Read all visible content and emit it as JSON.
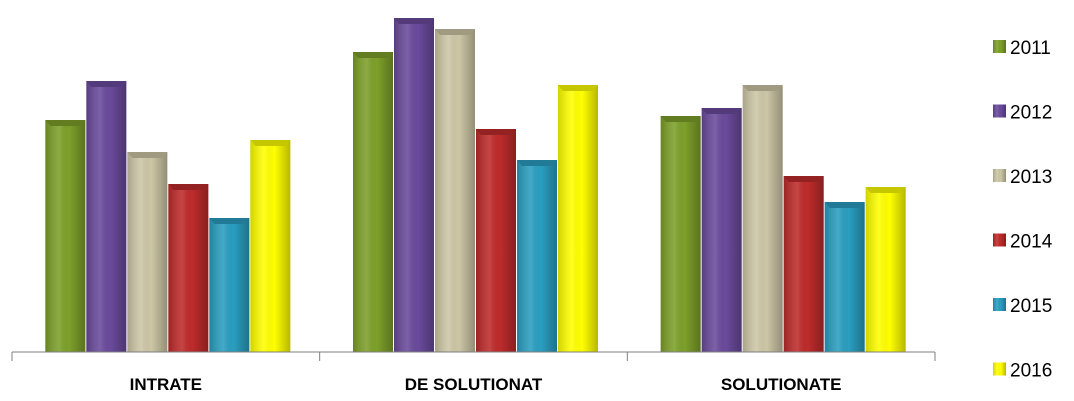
{
  "chart_data": {
    "type": "bar",
    "categories": [
      "INTRATE",
      "DE SOLUTIONAT",
      "SOLUTIONATE"
    ],
    "series": [
      {
        "name": "2011",
        "color": "#7da02a",
        "values": [
          232,
          300,
          236
        ]
      },
      {
        "name": "2012",
        "color": "#6a4a9c",
        "values": [
          271,
          334,
          244
        ]
      },
      {
        "name": "2013",
        "color": "#cdc6a6",
        "values": [
          200,
          323,
          267
        ]
      },
      {
        "name": "2014",
        "color": "#be2b2b",
        "values": [
          168,
          223,
          176
        ]
      },
      {
        "name": "2015",
        "color": "#2a9ec0",
        "values": [
          134,
          192,
          150
        ]
      },
      {
        "name": "2016",
        "color": "#ffff00",
        "values": [
          212,
          267,
          165
        ]
      }
    ],
    "ylim": [
      0,
      350
    ],
    "grid": false,
    "legend_position": "right"
  }
}
